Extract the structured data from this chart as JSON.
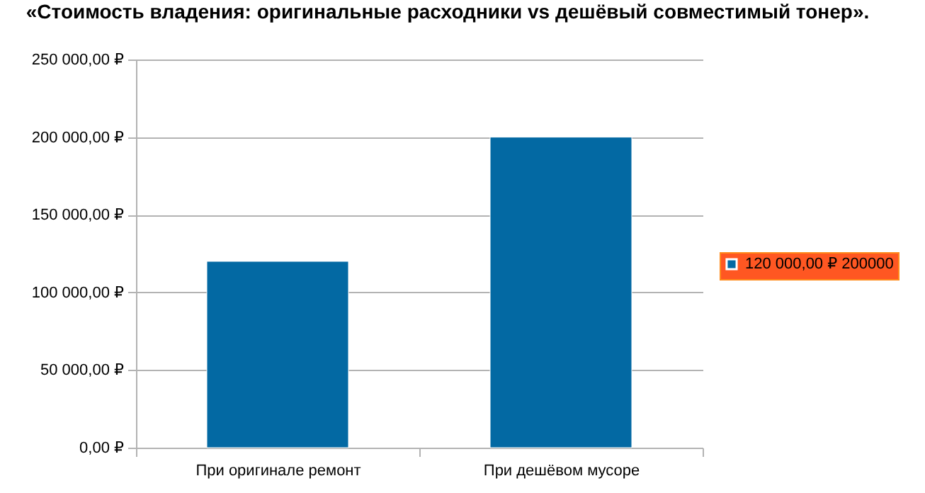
{
  "chart_data": {
    "type": "bar",
    "title": "«Стоимость владения: оригинальные расходники vs дешёвый совместимый тонер».",
    "categories": [
      "При оригинале ремонт",
      "При дешёвом мусоре"
    ],
    "series": [
      {
        "name": "120 000,00 ₽ 200000",
        "color": "#0369a3",
        "values": [
          120000,
          200000
        ]
      }
    ],
    "ylim": [
      0,
      250000
    ],
    "yticks": [
      {
        "value": 0,
        "label": "0,00 ₽"
      },
      {
        "value": 50000,
        "label": "50 000,00 ₽"
      },
      {
        "value": 100000,
        "label": "100 000,00 ₽"
      },
      {
        "value": 150000,
        "label": "150 000,00 ₽"
      },
      {
        "value": 200000,
        "label": "200 000,00 ₽"
      },
      {
        "value": 250000,
        "label": "250 000,00 ₽"
      }
    ],
    "grid": "y",
    "legend": "right"
  }
}
